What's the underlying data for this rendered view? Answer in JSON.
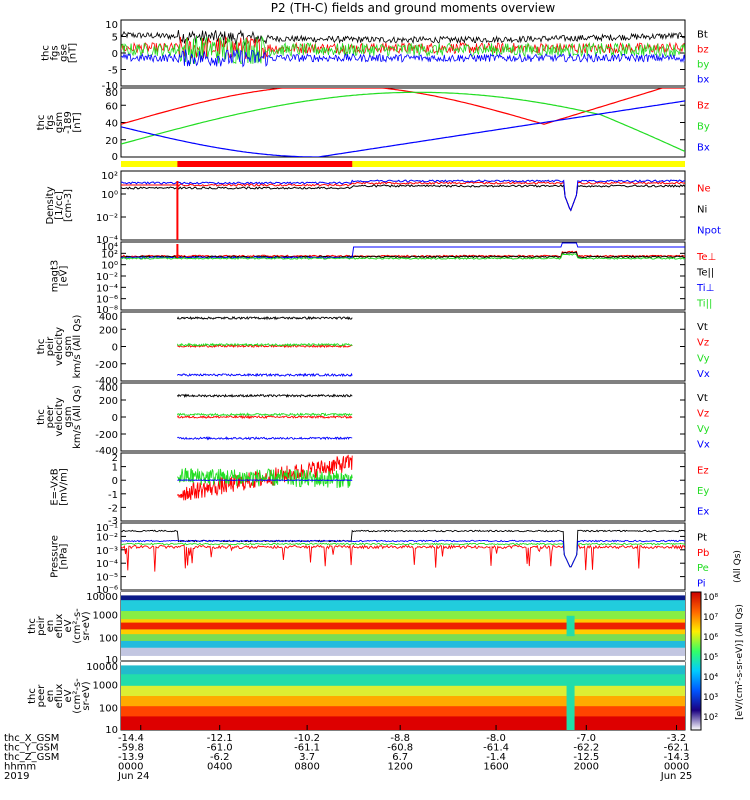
{
  "title": "P2 (TH-C) fields and ground moments overview",
  "colors": {
    "black": "#000000",
    "red": "#ff0000",
    "green": "#22dd22",
    "blue": "#0000ff",
    "yellow": "#ffff00"
  },
  "chart_data": [
    {
      "id": "fgs-gse",
      "type": "line",
      "ylabel": [
        "thc",
        "fgs",
        "gse",
        "[nT]"
      ],
      "yticks": [
        "10",
        "5",
        "0",
        "-5",
        "-10"
      ],
      "ylim": [
        -10,
        10
      ],
      "series": [
        {
          "name": "Bt",
          "color": "#000000",
          "base": 5.5,
          "amp": 1.2
        },
        {
          "name": "bz",
          "color": "#ff0000",
          "base": 1.5,
          "amp": 2.0
        },
        {
          "name": "by",
          "color": "#22dd22",
          "base": 1.0,
          "amp": 2.5
        },
        {
          "name": "bx",
          "color": "#0000ff",
          "base": -1.5,
          "amp": 1.5
        }
      ]
    },
    {
      "id": "fgs-gsm",
      "type": "line",
      "ylabel": [
        "thc",
        "fgs",
        "gsm",
        "-189",
        "[nT]"
      ],
      "yticks": [
        "80",
        "60",
        "40",
        "20",
        "0"
      ],
      "ylim": [
        0,
        80
      ],
      "series": [
        {
          "name": "Bz",
          "color": "#ff0000"
        },
        {
          "name": "By",
          "color": "#22dd22"
        },
        {
          "name": "Bx",
          "color": "#0000ff"
        }
      ]
    },
    {
      "id": "density",
      "type": "line",
      "ylabel": [
        "Density",
        "[1/cc]",
        "[cm-3]"
      ],
      "yticks": [
        "10²",
        "10⁰",
        "10⁻²",
        "10⁻⁴"
      ],
      "series": [
        {
          "name": "Ne",
          "color": "#ff0000"
        },
        {
          "name": "Ni",
          "color": "#000000"
        },
        {
          "name": "Npot",
          "color": "#0000ff"
        }
      ]
    },
    {
      "id": "temperature",
      "type": "line",
      "ylabel": [
        "magt3",
        "[eV]"
      ],
      "yticks": [
        "10⁴",
        "10²",
        "10⁰",
        "10⁻²",
        "10⁻⁴",
        "10⁻⁶",
        "10⁻⁸"
      ],
      "series": [
        {
          "name": "Te⊥",
          "color": "#ff0000"
        },
        {
          "name": "Te||",
          "color": "#000000"
        },
        {
          "name": "Ti⊥",
          "color": "#0000ff"
        },
        {
          "name": "Ti||",
          "color": "#22dd22"
        }
      ]
    },
    {
      "id": "peir-velocity",
      "type": "line",
      "ylabel": [
        "thc",
        "peir",
        "velocity",
        "gsm",
        "km/s (All Qs)"
      ],
      "yticks": [
        "400",
        "200",
        "0",
        "-200",
        "-400"
      ],
      "ylim": [
        -400,
        400
      ],
      "series": [
        {
          "name": "Vt",
          "color": "#000000",
          "level": 330
        },
        {
          "name": "Vz",
          "color": "#ff0000",
          "level": 5
        },
        {
          "name": "Vy",
          "color": "#22dd22",
          "level": 20
        },
        {
          "name": "Vx",
          "color": "#0000ff",
          "level": -330
        }
      ]
    },
    {
      "id": "peer-velocity",
      "type": "line",
      "ylabel": [
        "thc",
        "peer",
        "velocity",
        "gsm",
        "km/s (All Qs)"
      ],
      "yticks": [
        "400",
        "200",
        "0",
        "-200",
        "-400"
      ],
      "ylim": [
        -400,
        400
      ],
      "series": [
        {
          "name": "Vt",
          "color": "#000000",
          "level": 250
        },
        {
          "name": "Vz",
          "color": "#ff0000",
          "level": 0
        },
        {
          "name": "Vy",
          "color": "#22dd22",
          "level": 30
        },
        {
          "name": "Vx",
          "color": "#0000ff",
          "level": -250
        }
      ]
    },
    {
      "id": "efield",
      "type": "line",
      "ylabel": [
        "E=-VxB",
        "[mV/m]"
      ],
      "yticks": [
        "2",
        "1",
        "0",
        "-1",
        "-2",
        "-3"
      ],
      "ylim": [
        -3,
        2
      ],
      "series": [
        {
          "name": "Ez",
          "color": "#ff0000"
        },
        {
          "name": "Ey",
          "color": "#22dd22"
        },
        {
          "name": "Ex",
          "color": "#0000ff"
        }
      ]
    },
    {
      "id": "pressure",
      "type": "line",
      "ylabel": [
        "Pressure",
        "[nPa]"
      ],
      "yticks": [
        "10⁻¹",
        "10⁻²",
        "10⁻³",
        "10⁻⁴",
        "10⁻⁵",
        "10⁻⁶"
      ],
      "side_label": "(All Qs)",
      "series": [
        {
          "name": "Pt",
          "color": "#000000"
        },
        {
          "name": "Pb",
          "color": "#ff0000"
        },
        {
          "name": "Pe",
          "color": "#22dd22"
        },
        {
          "name": "Pi",
          "color": "#0000ff"
        }
      ]
    },
    {
      "id": "peir-spectrogram",
      "type": "heatmap",
      "ylabel": [
        "thc",
        "peir",
        "en",
        "eflux",
        "eV",
        "(cm²-s-",
        "sr-eV)"
      ],
      "yticks": [
        "10000",
        "1000",
        "100",
        "10"
      ]
    },
    {
      "id": "peer-spectrogram",
      "type": "heatmap",
      "ylabel": [
        "thc",
        "peer",
        "en",
        "eflux",
        "eV",
        "(cm²-s-",
        "sr-eV)"
      ],
      "yticks": [
        "10000",
        "1000",
        "100",
        "10"
      ]
    }
  ],
  "colorbar": {
    "ticks": [
      "10⁸",
      "10⁷",
      "10⁶",
      "10⁵",
      "10⁴",
      "10³",
      "10²"
    ],
    "label": "[eV/(cm²-s-sr-eV)] (All Qs)",
    "label_lower": "[eV/(cm²-s-sr-eV)]"
  },
  "xaxis": {
    "rows": [
      {
        "label": "thc_X_GSM",
        "values": [
          "-14.4",
          "-12.1",
          "-10.2",
          "-8.8",
          "-8.0",
          "-7.0",
          "-3.2"
        ]
      },
      {
        "label": "thc_Y_GSM",
        "values": [
          "-59.8",
          "-61.0",
          "-61.1",
          "-60.8",
          "-61.4",
          "-62.2",
          "-62.1"
        ]
      },
      {
        "label": "thc_Z_GSM",
        "values": [
          "-13.9",
          "-6.2",
          "3.7",
          "6.7",
          "-1.4",
          "-12.5",
          "-14.3"
        ]
      },
      {
        "label": "hhmm",
        "values": [
          "0000",
          "0400",
          "0800",
          "1200",
          "1600",
          "2000",
          "0000"
        ]
      },
      {
        "label": "2019",
        "values": [
          "Jun 24",
          "",
          "",
          "",
          "",
          "",
          "Jun 25"
        ]
      }
    ]
  }
}
